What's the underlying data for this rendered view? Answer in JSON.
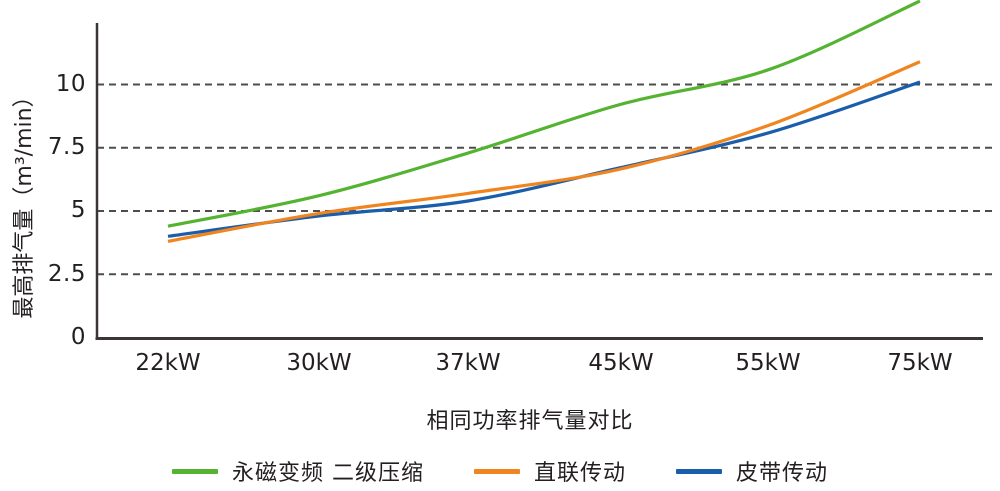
{
  "chart_data": {
    "type": "line",
    "title": "",
    "xlabel": "相同功率排气量对比",
    "ylabel": "最高排气量（m³/min）",
    "categories": [
      "22kW",
      "30kW",
      "37kW",
      "45kW",
      "55kW",
      "75kW"
    ],
    "y_ticks": [
      "10",
      "7.5",
      "5",
      "2.5",
      "0"
    ],
    "y_tick_values": [
      10,
      7.5,
      5,
      2.5,
      0
    ],
    "ylim": [
      0,
      12.4
    ],
    "grid": "horizontal-dashed",
    "legend_position": "bottom",
    "series": [
      {
        "name": "永磁变频 二级压缩",
        "color": "#54b331",
        "values": [
          4.4,
          5.6,
          7.3,
          9.2,
          10.6,
          13.3
        ]
      },
      {
        "name": "直联传动",
        "color": "#f0841e",
        "values": [
          3.8,
          4.9,
          5.7,
          6.65,
          8.4,
          10.9
        ]
      },
      {
        "name": "皮带传动",
        "color": "#1a5dab",
        "values": [
          4.0,
          4.8,
          5.4,
          6.7,
          8.1,
          10.1
        ]
      }
    ],
    "axis_color": "#3a3637",
    "grid_color": "#4d4d4d",
    "text_color": "#231f20"
  }
}
